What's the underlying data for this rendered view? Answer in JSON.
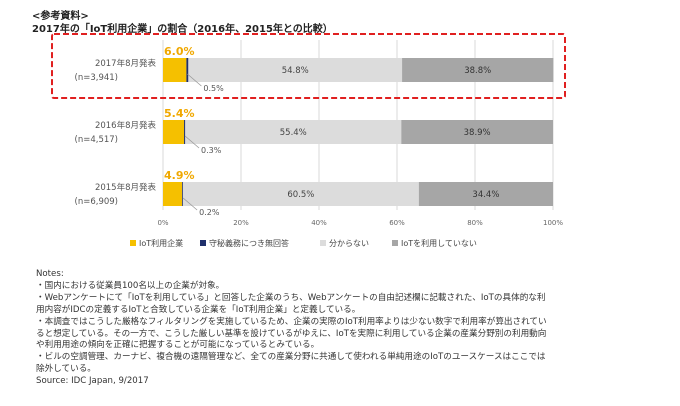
{
  "header": {
    "ref_label": "<参考資料>",
    "title": "2017年の「IoT利用企業」の割合（2016年、2015年との比較）"
  },
  "colors": {
    "iot": "#f5c000",
    "confidential": "#1f2f6b",
    "unknown": "#dcdcdc",
    "not_using": "#a6a6a6",
    "highlight": "#e02020",
    "pct_label": "#f0a800"
  },
  "chart_data": {
    "type": "bar",
    "orientation": "horizontal",
    "stacked": true,
    "percent_scale": true,
    "categories": [
      {
        "label": "2017年8月発表",
        "n": "(n=3,941)"
      },
      {
        "label": "2016年8月発表",
        "n": "(n=4,517)"
      },
      {
        "label": "2015年8月発表",
        "n": "(n=6,909)"
      }
    ],
    "series": [
      {
        "name": "IoT利用企業",
        "values": [
          6.0,
          5.4,
          4.9
        ]
      },
      {
        "name": "守秘義務につき無回答",
        "values": [
          0.5,
          0.3,
          0.2
        ]
      },
      {
        "name": "分からない",
        "values": [
          54.8,
          55.4,
          60.5
        ]
      },
      {
        "name": "IoTを利用していない",
        "values": [
          38.8,
          38.9,
          34.4
        ]
      }
    ],
    "iot_labels": [
      "6.0%",
      "5.4%",
      "4.9%"
    ],
    "confidential_labels": [
      "0.5%",
      "0.3%",
      "0.2%"
    ],
    "unknown_labels": [
      "54.8%",
      "55.4%",
      "60.5%"
    ],
    "not_using_labels": [
      "38.8%",
      "38.9%",
      "34.4%"
    ],
    "x_ticks": [
      "0%",
      "20%",
      "40%",
      "60%",
      "80%",
      "100%"
    ],
    "xlim": [
      0,
      100
    ],
    "grid": true,
    "legend_position": "bottom-left",
    "highlighted_category": "2017年8月発表"
  },
  "notes": {
    "heading": "Notes:",
    "lines": [
      "・国内における従業員100名以上の企業が対象。",
      "・Webアンケートにて「IoTを利用している」と回答した企業のうち、Webアンケートの自由記述欄に記載された、IoTの具体的な利",
      "用内容がIDCの定義するIoTと合致している企業を「IoT利用企業」と定義している。",
      "・本調査ではこうした厳格なフィルタリングを実施しているため、企業の実際のIoT利用率よりは少ない数字で利用率が算出されてい",
      "ると想定している。その一方で、こうした厳しい基準を設けているがゆえに、IoTを実際に利用している企業の産業分野別の利用動向",
      "や利用用途の傾向を正確に把握することが可能になっているとみている。",
      "・ビルの空調管理、カーナビ、複合機の遠隔管理など、全ての産業分野に共通して使われる単純用途のIoTのユースケースはここでは",
      "除外している。"
    ],
    "source": "Source: IDC Japan, 9/2017"
  }
}
